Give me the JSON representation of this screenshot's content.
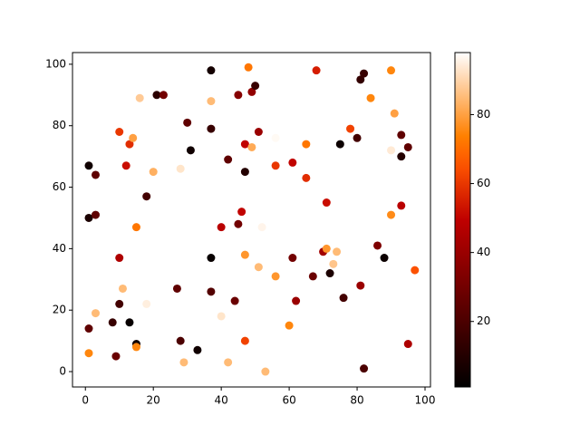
{
  "chart_data": {
    "type": "scatter",
    "colormap": "gist_heat",
    "x": [
      1,
      3,
      1,
      3,
      1,
      3,
      1,
      8,
      9,
      10,
      10,
      11,
      10,
      12,
      13,
      14,
      13,
      15,
      15,
      15,
      16,
      18,
      18,
      20,
      21,
      23,
      27,
      28,
      29,
      28,
      30,
      31,
      33,
      37,
      37,
      37,
      37,
      37,
      40,
      40,
      42,
      42,
      44,
      45,
      45,
      46,
      47,
      47,
      47,
      47,
      48,
      49,
      49,
      50,
      51,
      51,
      52,
      53,
      56,
      56,
      56,
      60,
      61,
      61,
      62,
      65,
      65,
      67,
      68,
      70,
      71,
      71,
      72,
      73,
      74,
      75,
      76,
      78,
      80,
      81,
      82,
      81,
      82,
      84,
      86,
      88,
      90,
      90,
      90,
      91,
      93,
      93,
      93,
      95,
      95,
      97
    ],
    "values": [
      67,
      64,
      50,
      51,
      14,
      19,
      6,
      16,
      5,
      22,
      37,
      27,
      78,
      67,
      74,
      76,
      16,
      9,
      8,
      47,
      89,
      57,
      22,
      65,
      90,
      90,
      27,
      10,
      3,
      66,
      81,
      72,
      7,
      98,
      88,
      79,
      37,
      26,
      47,
      18,
      69,
      3,
      23,
      90,
      48,
      52,
      74,
      65,
      38,
      10,
      99,
      91,
      73,
      93,
      78,
      34,
      47,
      0,
      76,
      67,
      31,
      15,
      68,
      37,
      23,
      74,
      63,
      31,
      98,
      39,
      40,
      55,
      32,
      35,
      39,
      74,
      24,
      79,
      76,
      95,
      97,
      28,
      1,
      89,
      41,
      37,
      98,
      72,
      51,
      84,
      77,
      70,
      54,
      73,
      9,
      33
    ],
    "color_values": [
      5,
      25,
      8,
      25,
      25,
      85,
      75,
      15,
      28,
      18,
      45,
      85,
      60,
      52,
      58,
      80,
      3,
      5,
      75,
      72,
      88,
      18,
      95,
      83,
      12,
      30,
      25,
      20,
      85,
      93,
      25,
      5,
      5,
      6,
      85,
      15,
      3,
      22,
      48,
      93,
      25,
      85,
      28,
      35,
      30,
      50,
      50,
      10,
      78,
      62,
      72,
      38,
      82,
      15,
      40,
      85,
      96,
      85,
      97,
      60,
      78,
      75,
      50,
      30,
      40,
      72,
      58,
      28,
      55,
      42,
      78,
      52,
      8,
      87,
      85,
      4,
      18,
      62,
      18,
      14,
      15,
      40,
      20,
      75,
      33,
      4,
      75,
      94,
      76,
      80,
      25,
      10,
      48,
      25,
      45,
      65
    ],
    "xlim": [
      -3.8,
      101.6
    ],
    "ylim": [
      -5,
      103.8
    ],
    "xticks": [
      0,
      20,
      40,
      60,
      80,
      100
    ],
    "yticks": [
      0,
      20,
      40,
      60,
      80,
      100
    ],
    "clim": [
      1,
      98
    ],
    "cticks": [
      20,
      40,
      60,
      80
    ]
  }
}
